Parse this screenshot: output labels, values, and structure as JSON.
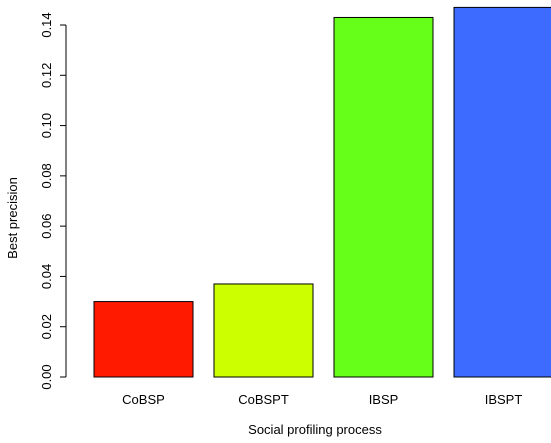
{
  "chart_data": {
    "type": "bar",
    "categories": [
      "CoBSP",
      "CoBSPT",
      "IBSP",
      "IBSPT"
    ],
    "values": [
      0.03,
      0.037,
      0.143,
      0.147
    ],
    "colors": [
      "#ff1a00",
      "#ccff00",
      "#66ff1a",
      "#3d6bff"
    ],
    "title": "",
    "xlabel": "Social profiling process",
    "ylabel": "Best precision",
    "ylim": [
      0,
      0.14
    ],
    "yticks": [
      "0.00",
      "0.02",
      "0.04",
      "0.06",
      "0.08",
      "0.10",
      "0.12",
      "0.14"
    ],
    "grid": false,
    "legend": "none"
  }
}
